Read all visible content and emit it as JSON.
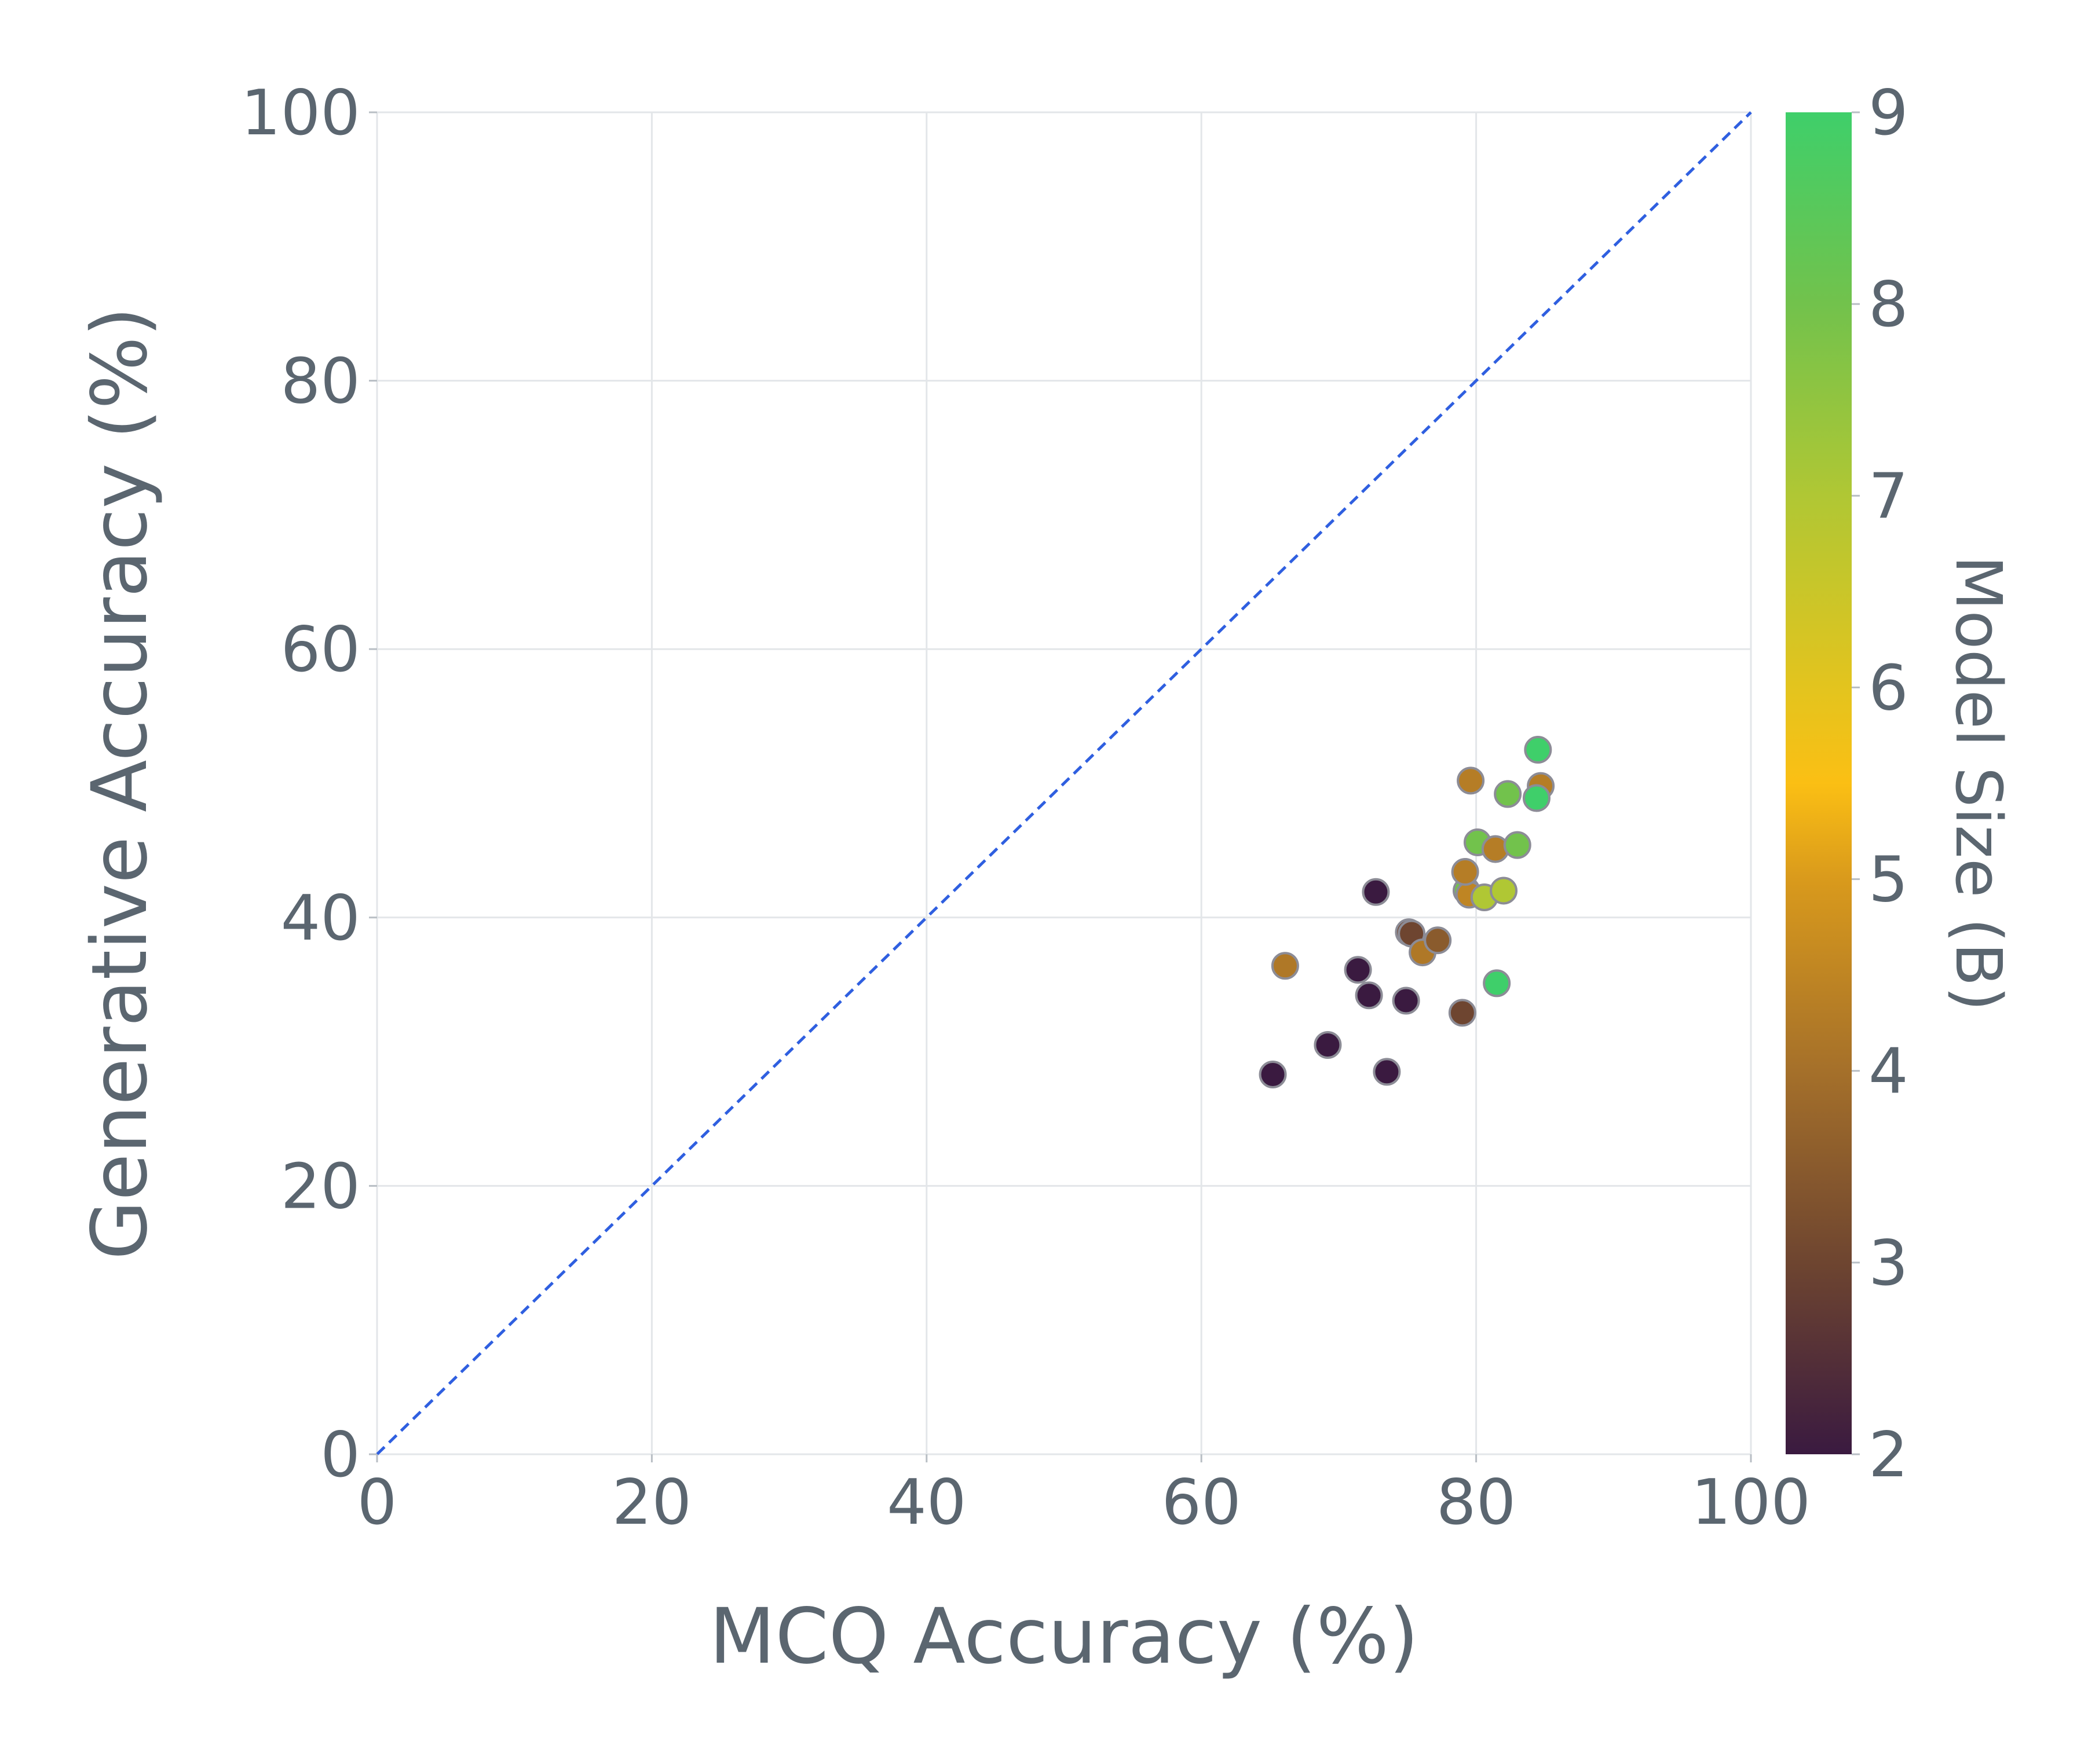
{
  "chart_data": {
    "type": "scatter",
    "title": "",
    "xlabel": "MCQ Accuracy (%)",
    "ylabel": "Generative Accuracy (%)",
    "xlim": [
      0,
      100
    ],
    "ylim": [
      0,
      100
    ],
    "xticks": [
      "0",
      "20",
      "40",
      "60",
      "80",
      "100"
    ],
    "yticks": [
      "0",
      "20",
      "40",
      "60",
      "80",
      "100"
    ],
    "grid": true,
    "reference_line": {
      "from": [
        0,
        0
      ],
      "to": [
        100,
        100
      ],
      "style": "dashed",
      "color": "#2f5fe0"
    },
    "colorbar": {
      "label": "Model Size (B)",
      "range": [
        2,
        9
      ],
      "ticks": [
        "2",
        "3",
        "4",
        "5",
        "6",
        "7",
        "8",
        "9"
      ],
      "colormap": [
        {
          "v": 2.0,
          "color": "#3a1a40"
        },
        {
          "v": 3.0,
          "color": "#6e4530"
        },
        {
          "v": 4.0,
          "color": "#a5702a"
        },
        {
          "v": 5.0,
          "color": "#d99a1c"
        },
        {
          "v": 5.5,
          "color": "#fbbf14"
        },
        {
          "v": 6.0,
          "color": "#e3c41e"
        },
        {
          "v": 7.0,
          "color": "#b0c734"
        },
        {
          "v": 8.0,
          "color": "#72c24c"
        },
        {
          "v": 9.0,
          "color": "#3fcf6a"
        }
      ]
    },
    "points": [
      {
        "x": 65.2,
        "y": 28.3,
        "size": 2.0
      },
      {
        "x": 66.1,
        "y": 36.4,
        "size": 4.2
      },
      {
        "x": 69.2,
        "y": 30.5,
        "size": 2.0
      },
      {
        "x": 71.4,
        "y": 36.1,
        "size": 2.0
      },
      {
        "x": 72.2,
        "y": 34.2,
        "size": 2.0
      },
      {
        "x": 72.7,
        "y": 41.9,
        "size": 2.0
      },
      {
        "x": 73.5,
        "y": 28.5,
        "size": 2.0
      },
      {
        "x": 74.9,
        "y": 33.8,
        "size": 2.0
      },
      {
        "x": 75.1,
        "y": 38.9,
        "size": 3.0
      },
      {
        "x": 75.3,
        "y": 38.8,
        "size": 3.0
      },
      {
        "x": 76.1,
        "y": 37.4,
        "size": 4.2
      },
      {
        "x": 77.2,
        "y": 38.3,
        "size": 3.5
      },
      {
        "x": 79.0,
        "y": 32.9,
        "size": 3.0
      },
      {
        "x": 79.3,
        "y": 42.0,
        "size": 8.0
      },
      {
        "x": 79.5,
        "y": 41.7,
        "size": 4.5
      },
      {
        "x": 79.2,
        "y": 43.4,
        "size": 4.3
      },
      {
        "x": 79.6,
        "y": 50.2,
        "size": 4.3
      },
      {
        "x": 80.1,
        "y": 45.6,
        "size": 8.0
      },
      {
        "x": 80.6,
        "y": 41.5,
        "size": 7.0
      },
      {
        "x": 81.4,
        "y": 45.1,
        "size": 4.3
      },
      {
        "x": 81.5,
        "y": 35.1,
        "size": 9.0
      },
      {
        "x": 82.0,
        "y": 42.0,
        "size": 7.0
      },
      {
        "x": 82.3,
        "y": 49.2,
        "size": 8.0
      },
      {
        "x": 83.0,
        "y": 45.4,
        "size": 8.0
      },
      {
        "x": 84.5,
        "y": 52.5,
        "size": 9.0
      },
      {
        "x": 84.7,
        "y": 49.8,
        "size": 4.3
      },
      {
        "x": 84.4,
        "y": 48.9,
        "size": 9.0
      }
    ]
  }
}
